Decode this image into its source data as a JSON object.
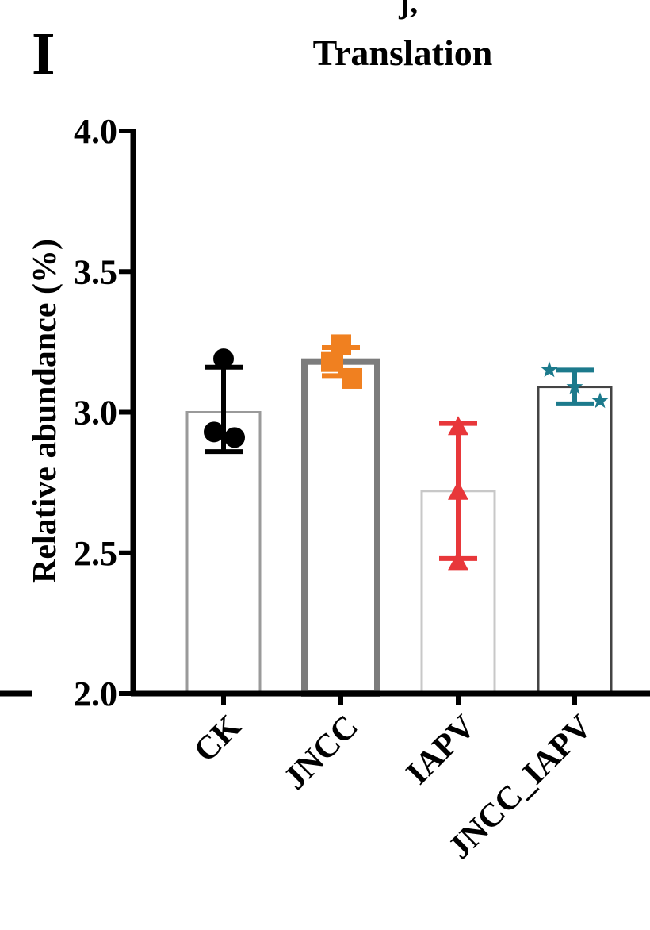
{
  "panel_label": "I",
  "top_fragment": "ʃ,",
  "chart_data": {
    "type": "bar",
    "title": "Translation",
    "xlabel": "",
    "ylabel": "Relative abundance (%)",
    "ylim": [
      2.0,
      4.0
    ],
    "yticks": [
      "2.0",
      "2.5",
      "3.0",
      "3.5",
      "4.0"
    ],
    "ytick_values": [
      2.0,
      2.5,
      3.0,
      3.5,
      4.0
    ],
    "categories": [
      "CK",
      "JNCC",
      "IAPV",
      "JNCC_IAPV"
    ],
    "values": [
      3.0,
      3.18,
      2.72,
      3.09
    ],
    "error_upper": [
      3.16,
      3.23,
      2.96,
      3.15
    ],
    "error_lower": [
      2.86,
      3.13,
      2.48,
      3.03
    ],
    "points": [
      [
        3.19,
        2.93,
        2.91
      ],
      [
        3.24,
        3.18,
        3.12
      ],
      [
        2.95,
        2.72,
        2.47
      ],
      [
        3.15,
        3.09,
        3.04
      ]
    ],
    "marker_shapes": [
      "circle",
      "square",
      "triangle",
      "star"
    ],
    "marker_colors": [
      "#000000",
      "#f08020",
      "#e8373a",
      "#1c7a8c"
    ],
    "bar_edge_colors": [
      "#9a9a9a",
      "#7c7c7c",
      "#c8c8c8",
      "#444444"
    ],
    "grid": false
  }
}
